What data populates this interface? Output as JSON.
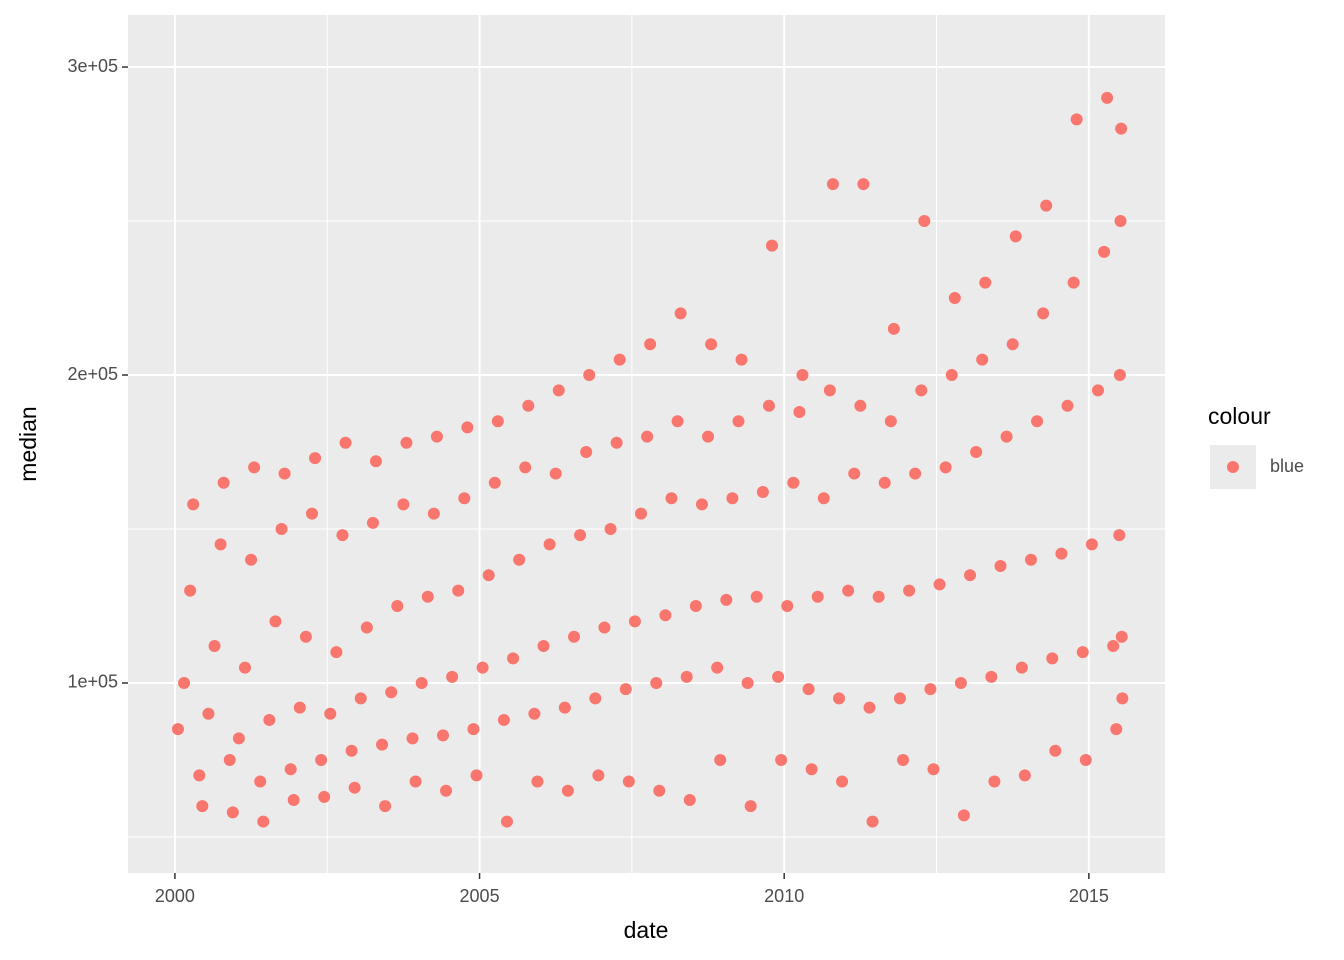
{
  "chart_data": {
    "type": "scatter",
    "x_label": "date",
    "y_label": "median",
    "legend_title": "colour",
    "legend": "right",
    "grid": true,
    "xlim": [
      1999.23,
      2016.25
    ],
    "ylim": [
      38300,
      316900
    ],
    "xticks": [
      2000,
      2005,
      2010,
      2015
    ],
    "minor_xticks": [
      2002.5,
      2007.5,
      2012.5
    ],
    "yticks": [
      {
        "value": 100000,
        "label": "1e+05"
      },
      {
        "value": 200000,
        "label": "2e+05"
      },
      {
        "value": 300000,
        "label": "3e+05"
      }
    ],
    "minor_yticks": [
      50000,
      150000,
      250000
    ],
    "x": [
      2000.05,
      2000.25,
      2000.4,
      2000.15,
      2000.3,
      2000.45,
      2000.55,
      2000.75,
      2000.9,
      2000.65,
      2000.8,
      2000.95,
      2001.05,
      2001.25,
      2001.4,
      2001.15,
      2001.3,
      2001.45,
      2001.55,
      2001.75,
      2001.9,
      2001.65,
      2001.8,
      2001.95,
      2002.05,
      2002.25,
      2002.4,
      2002.15,
      2002.3,
      2002.45,
      2002.55,
      2002.75,
      2002.9,
      2002.65,
      2002.8,
      2002.95,
      2003.05,
      2003.25,
      2003.4,
      2003.15,
      2003.3,
      2003.45,
      2003.55,
      2003.75,
      2003.9,
      2003.65,
      2003.8,
      2003.95,
      2004.05,
      2004.25,
      2004.4,
      2004.15,
      2004.3,
      2004.45,
      2004.55,
      2004.75,
      2004.9,
      2004.65,
      2004.8,
      2004.95,
      2005.05,
      2005.25,
      2005.4,
      2005.15,
      2005.3,
      2005.45,
      2005.55,
      2005.75,
      2005.9,
      2005.65,
      2005.8,
      2005.95,
      2006.05,
      2006.25,
      2006.4,
      2006.15,
      2006.3,
      2006.45,
      2006.55,
      2006.75,
      2006.9,
      2006.65,
      2006.8,
      2006.95,
      2007.05,
      2007.25,
      2007.4,
      2007.15,
      2007.3,
      2007.45,
      2007.55,
      2007.75,
      2007.9,
      2007.65,
      2007.8,
      2007.95,
      2008.05,
      2008.25,
      2008.4,
      2008.15,
      2008.3,
      2008.45,
      2008.55,
      2008.75,
      2008.9,
      2008.65,
      2008.8,
      2008.95,
      2009.05,
      2009.25,
      2009.4,
      2009.15,
      2009.3,
      2009.45,
      2009.55,
      2009.75,
      2009.9,
      2009.65,
      2009.8,
      2009.95,
      2010.05,
      2010.25,
      2010.4,
      2010.15,
      2010.3,
      2010.45,
      2010.55,
      2010.75,
      2010.9,
      2010.65,
      2010.8,
      2010.95,
      2011.05,
      2011.25,
      2011.4,
      2011.15,
      2011.3,
      2011.45,
      2011.55,
      2011.75,
      2011.9,
      2011.65,
      2011.8,
      2011.95,
      2012.05,
      2012.25,
      2012.4,
      2012.15,
      2012.3,
      2012.45,
      2012.55,
      2012.75,
      2012.9,
      2012.65,
      2012.8,
      2012.95,
      2013.05,
      2013.25,
      2013.4,
      2013.15,
      2013.3,
      2013.45,
      2013.55,
      2013.75,
      2013.9,
      2013.65,
      2013.8,
      2013.95,
      2014.05,
      2014.25,
      2014.4,
      2014.15,
      2014.3,
      2014.45,
      2014.55,
      2014.75,
      2014.9,
      2014.65,
      2014.8,
      2014.95,
      2015.05,
      2015.25,
      2015.4,
      2015.15,
      2015.3,
      2015.45,
      2015.5,
      2015.52,
      2015.54,
      2015.51,
      2015.53,
      2015.55
    ],
    "series": [
      {
        "name": "blue",
        "color": "#f8766d",
        "values": [
          85000,
          130000,
          70000,
          100000,
          158000,
          60000,
          90000,
          145000,
          75000,
          112000,
          165000,
          58000,
          82000,
          140000,
          68000,
          105000,
          170000,
          55000,
          88000,
          150000,
          72000,
          120000,
          168000,
          62000,
          92000,
          155000,
          75000,
          115000,
          173000,
          63000,
          90000,
          148000,
          78000,
          110000,
          178000,
          66000,
          95000,
          152000,
          80000,
          118000,
          172000,
          60000,
          97000,
          158000,
          82000,
          125000,
          178000,
          68000,
          100000,
          155000,
          83000,
          128000,
          180000,
          65000,
          102000,
          160000,
          85000,
          130000,
          183000,
          70000,
          105000,
          165000,
          88000,
          135000,
          185000,
          55000,
          108000,
          170000,
          90000,
          140000,
          190000,
          68000,
          112000,
          168000,
          92000,
          145000,
          195000,
          65000,
          115000,
          175000,
          95000,
          148000,
          200000,
          70000,
          118000,
          178000,
          98000,
          150000,
          205000,
          68000,
          120000,
          180000,
          100000,
          155000,
          210000,
          65000,
          122000,
          185000,
          102000,
          160000,
          220000,
          62000,
          125000,
          180000,
          105000,
          158000,
          210000,
          75000,
          127000,
          185000,
          100000,
          160000,
          205000,
          60000,
          128000,
          190000,
          102000,
          162000,
          242000,
          75000,
          125000,
          188000,
          98000,
          165000,
          200000,
          72000,
          128000,
          195000,
          95000,
          160000,
          262000,
          68000,
          130000,
          190000,
          92000,
          168000,
          262000,
          55000,
          128000,
          185000,
          95000,
          165000,
          215000,
          75000,
          130000,
          195000,
          98000,
          168000,
          250000,
          72000,
          132000,
          200000,
          100000,
          170000,
          225000,
          57000,
          135000,
          205000,
          102000,
          175000,
          230000,
          68000,
          138000,
          210000,
          105000,
          180000,
          245000,
          70000,
          140000,
          220000,
          108000,
          185000,
          255000,
          78000,
          142000,
          230000,
          110000,
          190000,
          283000,
          75000,
          145000,
          240000,
          112000,
          195000,
          290000,
          85000,
          148000,
          250000,
          115000,
          200000,
          280000,
          95000
        ]
      }
    ]
  }
}
